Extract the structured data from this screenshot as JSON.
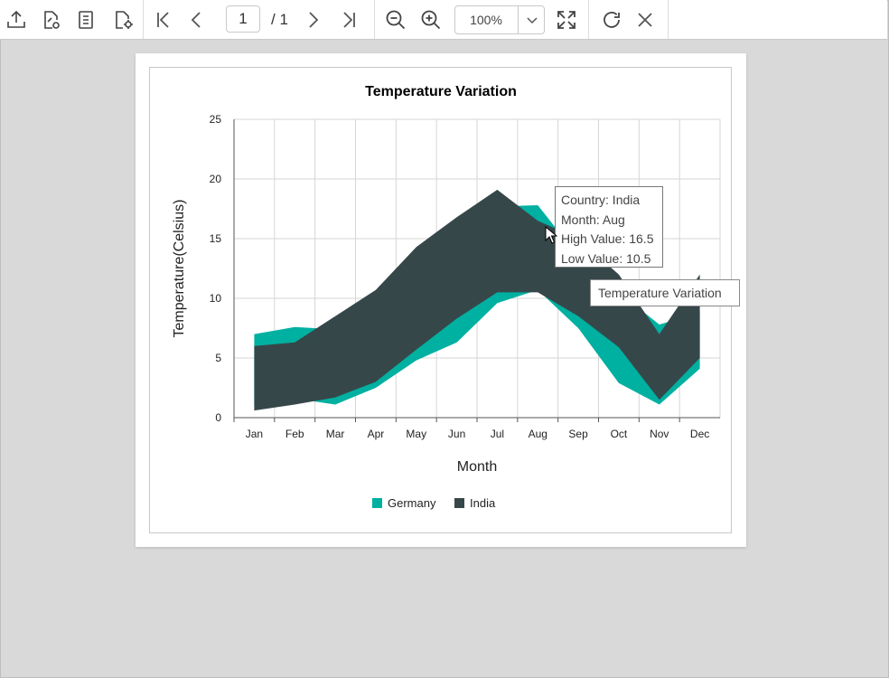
{
  "toolbar": {
    "page_current": "1",
    "page_total": "/ 1",
    "zoom_value": "100%"
  },
  "chart_data": {
    "type": "area",
    "title": "Temperature Variation",
    "xlabel": "Month",
    "ylabel": "Temperature(Celsius)",
    "categories": [
      "Jan",
      "Feb",
      "Mar",
      "Apr",
      "May",
      "Jun",
      "Jul",
      "Aug",
      "Sep",
      "Oct",
      "Nov",
      "Dec"
    ],
    "ylim": [
      0,
      25
    ],
    "yticks": [
      0,
      5,
      10,
      15,
      20,
      25
    ],
    "grid": true,
    "legend_position": "bottom",
    "series": [
      {
        "name": "Germany",
        "color": "#00b0a0",
        "high": [
          7.0,
          7.6,
          7.4,
          10.6,
          14.0,
          16.5,
          17.7,
          17.8,
          13.5,
          10.5,
          7.8,
          8.8
        ],
        "low": [
          1.0,
          1.6,
          1.1,
          2.5,
          4.8,
          6.3,
          9.6,
          10.7,
          7.5,
          2.9,
          1.1,
          4.1
        ]
      },
      {
        "name": "India",
        "color": "#36474a",
        "high": [
          6.0,
          6.3,
          8.5,
          10.7,
          14.3,
          16.8,
          19.1,
          16.5,
          15.0,
          12.0,
          7.0,
          12.0
        ],
        "low": [
          0.6,
          1.1,
          1.7,
          3.0,
          5.7,
          8.3,
          10.5,
          10.5,
          8.5,
          5.9,
          1.5,
          5.0
        ]
      }
    ],
    "tooltip": {
      "country": "Country: India",
      "month": "Month: Aug",
      "high": "High Value: 16.5",
      "low": "Low Value: 10.5"
    },
    "hover_label": "Temperature Variation"
  }
}
